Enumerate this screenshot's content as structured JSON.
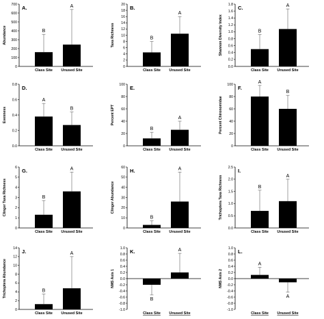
{
  "chart_data": [
    {
      "panel": "A.",
      "type": "bar",
      "ylabel": "Abundance",
      "categories": [
        "Class Site",
        "Unused Site"
      ],
      "values": [
        160,
        245
      ],
      "error_upper": [
        200,
        395
      ],
      "sig_labels": [
        "B",
        "A"
      ],
      "ylim": [
        0,
        700
      ],
      "yticks": [
        "0",
        "100",
        "200",
        "300",
        "400",
        "500",
        "600",
        "700"
      ]
    },
    {
      "panel": "B.",
      "type": "bar",
      "ylabel": "Taxa Richness",
      "categories": [
        "Class Site",
        "Unused Site"
      ],
      "values": [
        4.5,
        10.5
      ],
      "error_upper": [
        3.5,
        5.5
      ],
      "sig_labels": [
        "B",
        "A"
      ],
      "ylim": [
        0,
        20
      ],
      "yticks": [
        "0",
        "2",
        "4",
        "6",
        "8",
        "10",
        "12",
        "14",
        "16",
        "18",
        "20"
      ]
    },
    {
      "panel": "C.",
      "type": "bar",
      "ylabel": "Shannon Diversity Index",
      "categories": [
        "Class Site",
        "Unused Site"
      ],
      "values": [
        0.5,
        1.08
      ],
      "error_upper": [
        0.42,
        0.58
      ],
      "sig_labels": [
        "B",
        "A"
      ],
      "ylim": [
        0,
        1.8
      ],
      "yticks": [
        "0.0",
        "0.2",
        "0.4",
        "0.6",
        "0.8",
        "1.0",
        "1.2",
        "1.4",
        "1.6",
        "1.8"
      ]
    },
    {
      "panel": "D.",
      "type": "bar",
      "ylabel": "Evenness",
      "categories": [
        "Class Site",
        "Unused Site"
      ],
      "values": [
        0.38,
        0.27
      ],
      "error_upper": [
        0.17,
        0.17
      ],
      "sig_labels": [
        "A",
        "B"
      ],
      "ylim": [
        0,
        0.8
      ],
      "yticks": [
        "0.0",
        "0.2",
        "0.4",
        "0.6",
        "0.8"
      ]
    },
    {
      "panel": "E.",
      "type": "bar",
      "ylabel": "Percent EPT",
      "categories": [
        "Class Site",
        "Unused Site"
      ],
      "values": [
        12,
        26
      ],
      "error_upper": [
        10,
        14
      ],
      "sig_labels": [
        "B",
        "A"
      ],
      "ylim": [
        0,
        100
      ],
      "yticks": [
        "0",
        "20",
        "40",
        "60",
        "80",
        "100"
      ]
    },
    {
      "panel": "F.",
      "type": "bar",
      "ylabel": "Percent Chironomidae",
      "categories": [
        "Class Site",
        "Unused Site"
      ],
      "values": [
        80,
        60
      ],
      "error_upper": [
        18,
        22
      ],
      "sig_labels": [
        "A",
        "B"
      ],
      "ylim": [
        0,
        100
      ],
      "yticks": [
        "0",
        "20",
        "40",
        "60",
        "80",
        "100"
      ]
    },
    {
      "panel": "G.",
      "type": "bar",
      "ylabel": "Clinger Taxa Richness",
      "categories": [
        "Class Site",
        "Unused Site"
      ],
      "values": [
        1.3,
        3.6
      ],
      "error_upper": [
        1.4,
        1.9
      ],
      "sig_labels": [
        "B",
        "A"
      ],
      "ylim": [
        0,
        6
      ],
      "yticks": [
        "0",
        "1",
        "2",
        "3",
        "4",
        "5",
        "6"
      ]
    },
    {
      "panel": "H.",
      "type": "bar",
      "ylabel": "Clinger Abundance",
      "categories": [
        "Class Site",
        "Unused Site"
      ],
      "values": [
        3,
        26
      ],
      "error_upper": [
        4,
        29
      ],
      "sig_labels": [
        "B",
        "A"
      ],
      "ylim": [
        0,
        60
      ],
      "yticks": [
        "0",
        "10",
        "20",
        "30",
        "40",
        "50",
        "60"
      ]
    },
    {
      "panel": "I.",
      "type": "bar",
      "ylabel": "Trichoptera Taxa Richness",
      "categories": [
        "Class Site",
        "Unused Site"
      ],
      "values": [
        0.7,
        1.1
      ],
      "error_upper": [
        0.85,
        0.9
      ],
      "sig_labels": [
        "B",
        "A"
      ],
      "ylim": [
        0,
        2.5
      ],
      "yticks": [
        "0.0",
        "0.5",
        "1.0",
        "1.5",
        "2.0",
        "2.5"
      ]
    },
    {
      "panel": "J.",
      "type": "bar",
      "ylabel": "Trichoptera Abundance",
      "categories": [
        "Class Site",
        "Unused Site"
      ],
      "values": [
        1.2,
        4.8
      ],
      "error_upper": [
        2.3,
        7.2
      ],
      "sig_labels": [
        "B",
        "A"
      ],
      "ylim": [
        0,
        14
      ],
      "yticks": [
        "0",
        "2",
        "4",
        "6",
        "8",
        "10",
        "12",
        "14"
      ]
    },
    {
      "panel": "K.",
      "type": "bar",
      "ylabel": "NMS Axis 1",
      "categories": [
        "Class Site",
        "Unused Site"
      ],
      "values": [
        -0.2,
        0.2
      ],
      "error_upper": [
        0.33,
        0.62
      ],
      "sig_labels": [
        "B",
        "A"
      ],
      "ylim": [
        -1,
        1
      ],
      "yticks": [
        "-1.0",
        "-0.8",
        "-0.6",
        "-0.4",
        "-0.2",
        "0.0",
        "0.2",
        "0.4",
        "0.6",
        "0.8",
        "1.0"
      ]
    },
    {
      "panel": "L.",
      "type": "bar",
      "ylabel": "NMS Axis 2",
      "categories": [
        "Class Site",
        "Unused Site"
      ],
      "values": [
        0.12,
        -0.12
      ],
      "error_upper": [
        0.25,
        0.32
      ],
      "sig_labels": [
        "A",
        "A"
      ],
      "ylim": [
        -1,
        1
      ],
      "yticks": [
        "-1.0",
        "-0.8",
        "-0.6",
        "-0.4",
        "-0.2",
        "0.0",
        "0.2",
        "0.4",
        "0.6",
        "0.8",
        "1.0"
      ]
    }
  ]
}
